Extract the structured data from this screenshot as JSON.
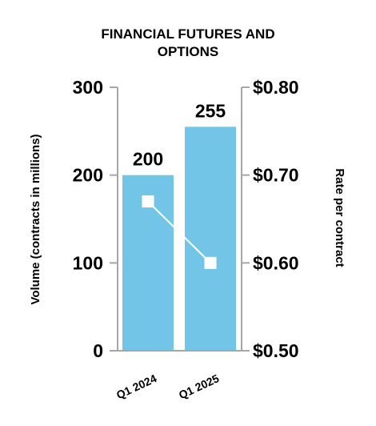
{
  "chart_data": {
    "type": "bar",
    "title_lines": [
      "FINANCIAL FUTURES AND",
      "OPTIONS"
    ],
    "categories": [
      "Q1 2024",
      "Q1 2025"
    ],
    "series": [
      {
        "name": "Volume",
        "type": "bar",
        "axis": "left",
        "values": [
          200,
          255
        ],
        "data_labels": [
          "200",
          "255"
        ],
        "color": "#73c5e8"
      },
      {
        "name": "Rate per contract",
        "type": "line",
        "axis": "right",
        "values": [
          0.67,
          0.6
        ],
        "color": "#ffffff"
      }
    ],
    "y_left": {
      "label": "Volume (contracts in millions)",
      "range": [
        0,
        300
      ],
      "ticks": [
        0,
        100,
        200,
        300
      ],
      "tick_labels": [
        "0",
        "100",
        "200",
        "300"
      ]
    },
    "y_right": {
      "label": "Rate per contract",
      "range": [
        0.5,
        0.8
      ],
      "ticks": [
        0.5,
        0.6,
        0.7,
        0.8
      ],
      "tick_labels": [
        "$0.50",
        "$0.60",
        "$0.70",
        "$0.80"
      ]
    },
    "grid": false,
    "axis_color": "#a6a6a6"
  }
}
